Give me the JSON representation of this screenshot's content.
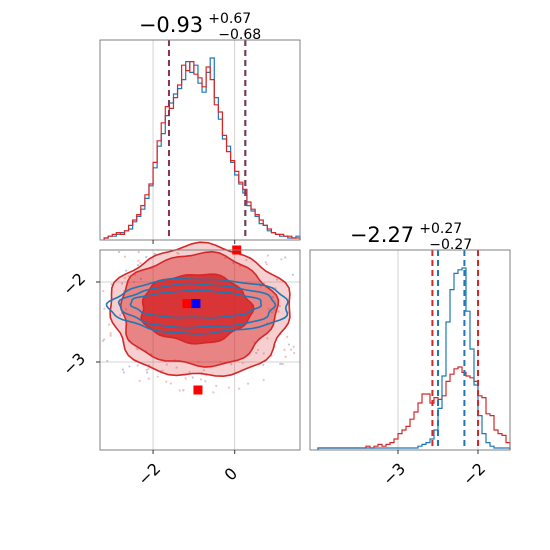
{
  "chart_data": {
    "type": "corner",
    "colors": {
      "red": "#d62728",
      "blue": "#1f77b4",
      "grid": "#c8c8c8",
      "frame": "#808080"
    },
    "parameters": [
      {
        "title": {
          "median": "−0.93",
          "plus": "+0.67",
          "minus": "−0.68"
        },
        "range": [
          -3.3,
          1.6
        ],
        "ticks": [
          -2,
          0
        ],
        "tick_labels": [
          "−2",
          "0"
        ],
        "quantile_lines": {
          "red": [
            -1.61,
            0.26
          ],
          "blue": [
            -1.61,
            0.26
          ]
        }
      },
      {
        "title": {
          "median": "−2.27",
          "plus": "+0.27",
          "minus": "−0.27"
        },
        "range": [
          -4.1,
          -1.6
        ],
        "ticks": [
          -3,
          -2
        ],
        "tick_labels": [
          "−3",
          "−2"
        ],
        "quantile_lines": {
          "red": [
            -2.57,
            -2.0
          ],
          "blue": [
            -2.5,
            -2.17
          ]
        }
      }
    ],
    "histograms": [
      {
        "parameter": 0,
        "bin_edges": [
          -3.2,
          -3.1,
          -3.0,
          -2.9,
          -2.8,
          -2.7,
          -2.6,
          -2.5,
          -2.4,
          -2.3,
          -2.2,
          -2.1,
          -2.0,
          -1.9,
          -1.8,
          -1.7,
          -1.6,
          -1.5,
          -1.4,
          -1.3,
          -1.2,
          -1.1,
          -1.0,
          -0.9,
          -0.8,
          -0.7,
          -0.6,
          -0.5,
          -0.4,
          -0.3,
          -0.2,
          -0.1,
          0.0,
          0.1,
          0.2,
          0.3,
          0.4,
          0.5,
          0.6,
          0.7,
          0.8,
          0.9,
          1.0,
          1.1,
          1.2,
          1.3,
          1.4,
          1.5,
          1.6
        ],
        "red": [
          0.0,
          0.01,
          0.02,
          0.03,
          0.02,
          0.04,
          0.07,
          0.1,
          0.13,
          0.18,
          0.24,
          0.3,
          0.42,
          0.54,
          0.64,
          0.73,
          0.72,
          0.78,
          0.85,
          0.96,
          0.93,
          0.98,
          0.91,
          0.89,
          0.84,
          0.95,
          0.88,
          0.74,
          0.7,
          0.57,
          0.48,
          0.43,
          0.37,
          0.31,
          0.27,
          0.2,
          0.16,
          0.13,
          0.1,
          0.07,
          0.05,
          0.03,
          0.02,
          0.02,
          0.01,
          0.01,
          0.0,
          0.0
        ],
        "blue": [
          0.0,
          0.01,
          0.01,
          0.02,
          0.03,
          0.04,
          0.05,
          0.09,
          0.12,
          0.16,
          0.22,
          0.29,
          0.39,
          0.51,
          0.58,
          0.68,
          0.75,
          0.8,
          0.83,
          0.88,
          0.98,
          0.92,
          0.96,
          0.86,
          0.81,
          0.92,
          1.0,
          0.78,
          0.66,
          0.55,
          0.51,
          0.42,
          0.35,
          0.3,
          0.25,
          0.18,
          0.15,
          0.12,
          0.08,
          0.07,
          0.04,
          0.03,
          0.02,
          0.01,
          0.01,
          0.0,
          0.0,
          0.01
        ]
      },
      {
        "parameter": 1,
        "bin_edges": [
          -4.0,
          -3.95,
          -3.9,
          -3.85,
          -3.8,
          -3.75,
          -3.7,
          -3.65,
          -3.6,
          -3.55,
          -3.5,
          -3.45,
          -3.4,
          -3.35,
          -3.3,
          -3.25,
          -3.2,
          -3.15,
          -3.1,
          -3.05,
          -3.0,
          -2.95,
          -2.9,
          -2.85,
          -2.8,
          -2.75,
          -2.7,
          -2.65,
          -2.6,
          -2.55,
          -2.5,
          -2.45,
          -2.4,
          -2.35,
          -2.3,
          -2.25,
          -2.2,
          -2.15,
          -2.1,
          -2.05,
          -2.0,
          -1.95,
          -1.9,
          -1.85,
          -1.8,
          -1.75,
          -1.7,
          -1.65,
          -1.6
        ],
        "red": [
          0.0,
          0.0,
          0.0,
          0.0,
          0.0,
          0.0,
          0.0,
          0.0,
          0.0,
          0.0,
          0.0,
          0.0,
          0.01,
          0.0,
          0.01,
          0.02,
          0.01,
          0.02,
          0.03,
          0.05,
          0.08,
          0.1,
          0.12,
          0.16,
          0.2,
          0.25,
          0.3,
          0.3,
          0.25,
          0.28,
          0.27,
          0.29,
          0.37,
          0.41,
          0.44,
          0.45,
          0.42,
          0.4,
          0.39,
          0.37,
          0.29,
          0.28,
          0.19,
          0.18,
          0.1,
          0.08,
          0.07,
          0.03
        ],
        "blue": [
          0.0,
          0.0,
          0.0,
          0.0,
          0.0,
          0.0,
          0.0,
          0.0,
          0.0,
          0.0,
          0.0,
          0.0,
          0.0,
          0.0,
          0.0,
          0.0,
          0.0,
          0.0,
          0.0,
          0.0,
          0.0,
          0.0,
          0.0,
          0.0,
          0.0,
          0.01,
          0.02,
          0.03,
          0.05,
          0.1,
          0.22,
          0.4,
          0.7,
          0.88,
          0.97,
          0.99,
          1.0,
          0.76,
          0.55,
          0.35,
          0.18,
          0.08,
          0.03,
          0.01,
          0.0,
          0.0,
          0.0,
          0.0
        ]
      }
    ],
    "joint": {
      "x_parameter": 0,
      "y_parameter": 1,
      "red_contours": [
        {
          "level": 0.39,
          "center": [
            -0.95,
            -2.33
          ],
          "rx": 1.35,
          "ry": 0.43,
          "rotation_deg": 0
        },
        {
          "level": 0.86,
          "center": [
            -0.9,
            -2.35
          ],
          "rx": 1.9,
          "ry": 0.7,
          "rotation_deg": 0
        },
        {
          "level": 0.99,
          "center": [
            -0.85,
            -2.37
          ],
          "rx": 2.2,
          "ry": 0.82,
          "rotation_deg": 0
        }
      ],
      "blue_contours": [
        {
          "level": 0.39,
          "center": [
            -0.95,
            -2.28
          ],
          "rx": 1.6,
          "ry": 0.17,
          "rotation_deg": 0
        },
        {
          "level": 0.86,
          "center": [
            -0.9,
            -2.3
          ],
          "rx": 1.9,
          "ry": 0.27,
          "rotation_deg": 0
        },
        {
          "level": 0.99,
          "center": [
            -0.85,
            -2.3
          ],
          "rx": 2.2,
          "ry": 0.34,
          "rotation_deg": 0
        }
      ],
      "red_markers": [
        {
          "x": 0.05,
          "y": -1.6
        },
        {
          "x": -1.17,
          "y": -2.27
        },
        {
          "x": -0.9,
          "y": -3.35
        }
      ],
      "blue_markers": [
        {
          "x": -0.95,
          "y": -2.27
        }
      ]
    }
  }
}
